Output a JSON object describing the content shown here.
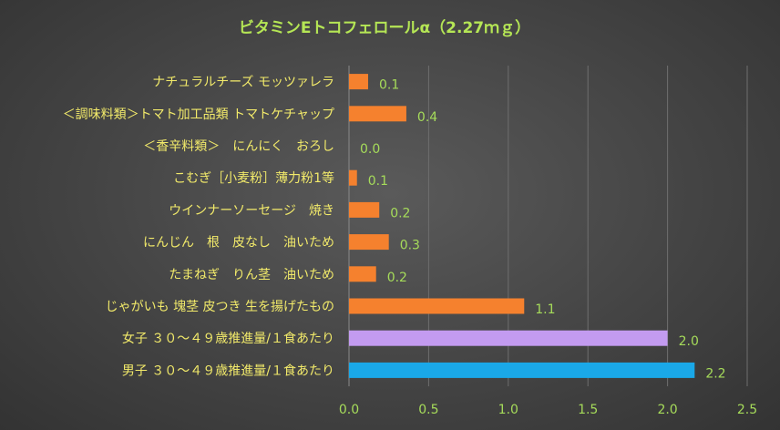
{
  "chart_data": {
    "type": "bar",
    "orientation": "horizontal",
    "title": "ビタミンEトコフェロールα（2.27ｍｇ）",
    "categories": [
      "ナチュラルチーズ モッツァレラ",
      "＜調味料類＞トマト加工品類 トマトケチャップ",
      "＜香辛料類＞　にんにく　おろし",
      "こむぎ［小麦粉］薄力粉1等",
      "ウインナーソーセージ　焼き",
      "にんじん　根　皮なし　油いため",
      "たまねぎ　りん茎　油いため",
      "じゃがいも 塊茎 皮つき 生を揚げたもの",
      "女子 ３０～４９歳推進量/１食あたり",
      "男子 ３０～４９歳推進量/１食あたり"
    ],
    "values": [
      0.12,
      0.36,
      0.0,
      0.05,
      0.19,
      0.25,
      0.17,
      1.1,
      2.0,
      2.17
    ],
    "data_labels": [
      "0.1",
      "0.4",
      "0.0",
      "0.1",
      "0.2",
      "0.3",
      "0.2",
      "1.1",
      "2.0",
      "2.2"
    ],
    "colors": [
      "#f5812e",
      "#f5812e",
      "#f5812e",
      "#f5812e",
      "#f5812e",
      "#f5812e",
      "#f5812e",
      "#f5812e",
      "#c39bf0",
      "#1aa8e8"
    ],
    "xlim": [
      0,
      2.5
    ],
    "xticks": [
      "0.0",
      "0.5",
      "1.0",
      "1.5",
      "2.0",
      "2.5"
    ],
    "xtick_values": [
      0,
      0.5,
      1.0,
      1.5,
      2.0,
      2.5
    ],
    "grid": true,
    "legend": "none"
  }
}
